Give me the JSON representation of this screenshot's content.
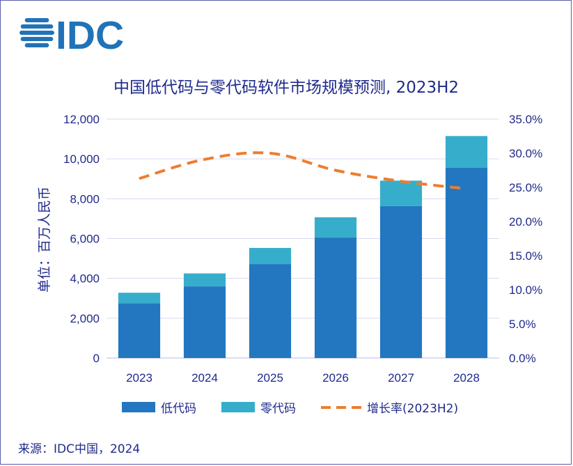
{
  "logo": {
    "text": "IDC",
    "color": "#2173b8"
  },
  "chart_data": {
    "type": "bar",
    "title": "中国低代码与零代码软件市场规模预测, 2023H2",
    "ylabel": "单位：百万人民币",
    "categories": [
      "2023",
      "2024",
      "2025",
      "2026",
      "2027",
      "2028"
    ],
    "ylim": [
      0,
      12000
    ],
    "y_ticks": [
      "0",
      "2,000",
      "4,000",
      "6,000",
      "8,000",
      "10,000",
      "12,000"
    ],
    "y2lim": [
      0,
      35
    ],
    "y2_ticks": [
      "0.0%",
      "5.0%",
      "10.0%",
      "15.0%",
      "20.0%",
      "25.0%",
      "30.0%",
      "35.0%"
    ],
    "stacked": true,
    "series": [
      {
        "name": "低代码",
        "type": "bar",
        "axis": "left",
        "color": "#2277c0",
        "values": [
          2750,
          3600,
          4720,
          6050,
          7630,
          9550
        ]
      },
      {
        "name": "零代码",
        "type": "bar",
        "axis": "left",
        "color": "#36aecb",
        "values": [
          530,
          650,
          810,
          1020,
          1280,
          1600
        ]
      },
      {
        "name": "增长率(2023H2)",
        "type": "line",
        "axis": "right",
        "style": "dashed",
        "color": "#ed7d31",
        "values": [
          26.3,
          29.1,
          30.0,
          27.5,
          25.9,
          24.8
        ]
      }
    ],
    "grid": true,
    "legend_position": "bottom"
  },
  "source": "来源：IDC中国，2024"
}
